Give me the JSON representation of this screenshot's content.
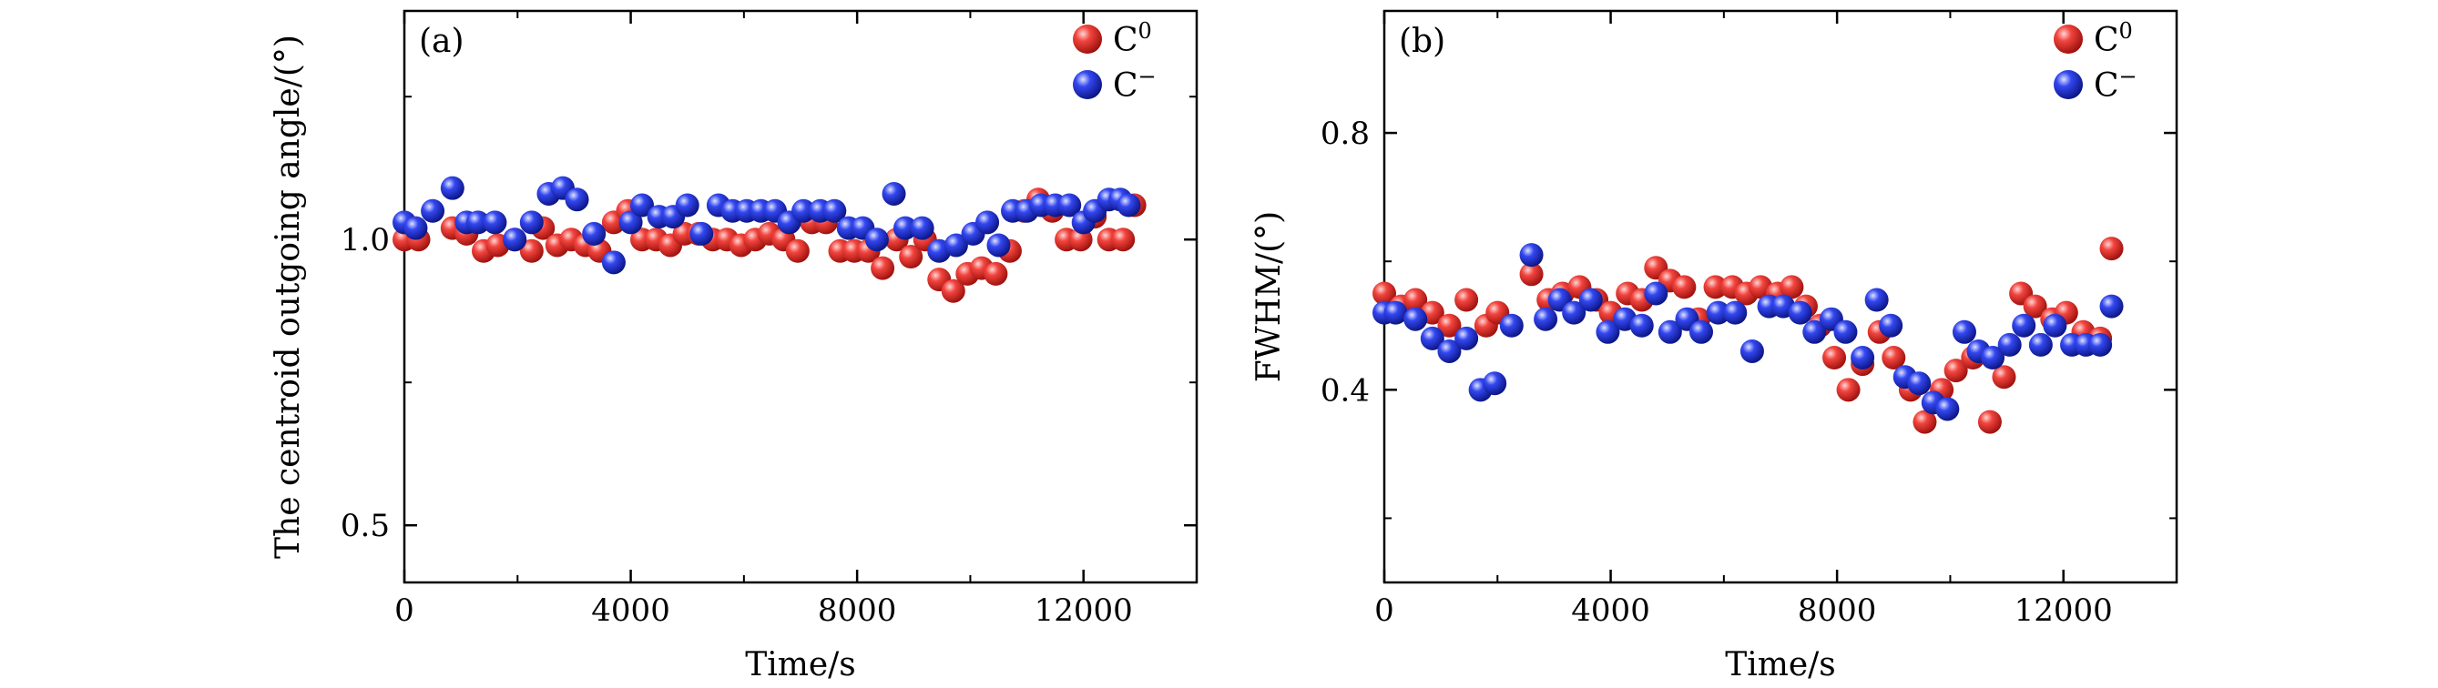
{
  "colors": {
    "c0": "#e8221e",
    "cminus": "#1f2fd8"
  },
  "chart_data": [
    {
      "type": "scatter",
      "panel_label": "(a)",
      "title": "",
      "xlabel": "Time/s",
      "ylabel": "The centroid outgoing angle/(°)",
      "xlim": [
        0,
        14000
      ],
      "ylim": [
        0.4,
        1.4
      ],
      "xticks": [
        0,
        4000,
        8000,
        12000
      ],
      "xtick_labels": [
        "0",
        "4000",
        "8000",
        "12000"
      ],
      "yticks": [
        0.5,
        1.0
      ],
      "ytick_labels": [
        "0.5",
        "1.0"
      ],
      "legend": {
        "position": "top-right",
        "entries": [
          {
            "series": "C0",
            "base": "C",
            "sup": "0"
          },
          {
            "series": "C-",
            "base": "C",
            "sup": "−"
          }
        ]
      },
      "series": [
        {
          "name": "C0",
          "x": [
            0,
            250,
            850,
            1100,
            1400,
            1650,
            1950,
            2250,
            2450,
            2700,
            2950,
            3200,
            3450,
            3700,
            3950,
            4200,
            4450,
            4700,
            4950,
            5200,
            5450,
            5700,
            5950,
            6200,
            6450,
            6700,
            6950,
            7200,
            7450,
            7700,
            7950,
            8200,
            8450,
            8700,
            8950,
            9200,
            9450,
            9700,
            9950,
            10200,
            10450,
            10700,
            10950,
            11200,
            11450,
            11700,
            11950,
            12200,
            12450,
            12700,
            12900
          ],
          "y": [
            1.0,
            1.0,
            1.02,
            1.01,
            0.98,
            0.99,
            1.0,
            0.98,
            1.02,
            0.99,
            1.0,
            0.99,
            0.98,
            1.03,
            1.05,
            1.0,
            1.0,
            0.99,
            1.01,
            1.01,
            1.0,
            1.0,
            0.99,
            1.0,
            1.01,
            1.0,
            0.98,
            1.03,
            1.03,
            0.98,
            0.98,
            0.98,
            0.95,
            1.0,
            0.97,
            1.0,
            0.93,
            0.91,
            0.94,
            0.95,
            0.94,
            0.98,
            1.05,
            1.07,
            1.05,
            1.0,
            1.0,
            1.04,
            1.0,
            1.0,
            1.06
          ]
        },
        {
          "name": "C-",
          "x": [
            0,
            200,
            500,
            850,
            1100,
            1300,
            1600,
            1950,
            2250,
            2550,
            2800,
            3050,
            3350,
            3700,
            4000,
            4200,
            4500,
            4750,
            5000,
            5250,
            5550,
            5800,
            6050,
            6300,
            6550,
            6800,
            7050,
            7350,
            7600,
            7850,
            8100,
            8350,
            8650,
            8850,
            9150,
            9450,
            9750,
            10050,
            10300,
            10500,
            10750,
            11000,
            11250,
            11500,
            11750,
            12000,
            12200,
            12450,
            12650,
            12800
          ],
          "y": [
            1.03,
            1.02,
            1.05,
            1.09,
            1.03,
            1.03,
            1.03,
            1.0,
            1.03,
            1.08,
            1.09,
            1.07,
            1.01,
            0.96,
            1.03,
            1.06,
            1.04,
            1.04,
            1.06,
            1.01,
            1.06,
            1.05,
            1.05,
            1.05,
            1.05,
            1.03,
            1.05,
            1.05,
            1.05,
            1.02,
            1.02,
            1.0,
            1.08,
            1.02,
            1.02,
            0.98,
            0.99,
            1.01,
            1.03,
            0.99,
            1.05,
            1.05,
            1.06,
            1.06,
            1.06,
            1.03,
            1.05,
            1.07,
            1.07,
            1.06
          ]
        }
      ]
    },
    {
      "type": "scatter",
      "panel_label": "(b)",
      "title": "",
      "xlabel": "Time/s",
      "ylabel": "FWHM/(°)",
      "xlim": [
        0,
        14000
      ],
      "ylim": [
        0.1,
        0.99
      ],
      "xticks": [
        0,
        4000,
        8000,
        12000
      ],
      "xtick_labels": [
        "0",
        "4000",
        "8000",
        "12000"
      ],
      "yticks": [
        0.4,
        0.8
      ],
      "ytick_labels": [
        "0.4",
        "0.8"
      ],
      "legend": {
        "position": "top-right",
        "entries": [
          {
            "series": "C0",
            "base": "C",
            "sup": "0"
          },
          {
            "series": "C-",
            "base": "C",
            "sup": "−"
          }
        ]
      },
      "series": [
        {
          "name": "C0",
          "x": [
            0,
            300,
            550,
            850,
            1150,
            1450,
            1800,
            2000,
            2600,
            2900,
            3150,
            3450,
            3750,
            4000,
            4300,
            4550,
            4800,
            5050,
            5300,
            5550,
            5850,
            6150,
            6400,
            6650,
            6950,
            7200,
            7450,
            7700,
            7950,
            8200,
            8450,
            8750,
            9000,
            9300,
            9550,
            9850,
            10100,
            10400,
            10700,
            10950,
            11250,
            11500,
            11800,
            12050,
            12350,
            12650,
            12850
          ],
          "y": [
            0.55,
            0.53,
            0.54,
            0.52,
            0.5,
            0.54,
            0.5,
            0.52,
            0.58,
            0.54,
            0.55,
            0.56,
            0.54,
            0.52,
            0.55,
            0.54,
            0.59,
            0.57,
            0.56,
            0.51,
            0.56,
            0.56,
            0.55,
            0.56,
            0.55,
            0.56,
            0.53,
            0.5,
            0.45,
            0.4,
            0.44,
            0.49,
            0.45,
            0.4,
            0.35,
            0.4,
            0.43,
            0.45,
            0.35,
            0.42,
            0.55,
            0.53,
            0.51,
            0.52,
            0.49,
            0.48,
            0.62
          ]
        },
        {
          "name": "C-",
          "x": [
            0,
            200,
            550,
            850,
            1150,
            1450,
            1700,
            1950,
            2250,
            2600,
            2850,
            3100,
            3350,
            3650,
            3950,
            4250,
            4550,
            4800,
            5050,
            5350,
            5600,
            5900,
            6200,
            6500,
            6800,
            7050,
            7350,
            7600,
            7900,
            8150,
            8450,
            8700,
            8950,
            9200,
            9450,
            9700,
            9950,
            10250,
            10500,
            10750,
            11050,
            11300,
            11600,
            11850,
            12150,
            12400,
            12650,
            12850
          ],
          "y": [
            0.52,
            0.52,
            0.51,
            0.48,
            0.46,
            0.48,
            0.4,
            0.41,
            0.5,
            0.61,
            0.51,
            0.54,
            0.52,
            0.54,
            0.49,
            0.51,
            0.5,
            0.55,
            0.49,
            0.51,
            0.49,
            0.52,
            0.52,
            0.46,
            0.53,
            0.53,
            0.52,
            0.49,
            0.51,
            0.49,
            0.45,
            0.54,
            0.5,
            0.42,
            0.41,
            0.38,
            0.37,
            0.49,
            0.46,
            0.45,
            0.47,
            0.5,
            0.47,
            0.5,
            0.47,
            0.47,
            0.47,
            0.53
          ]
        }
      ]
    }
  ]
}
